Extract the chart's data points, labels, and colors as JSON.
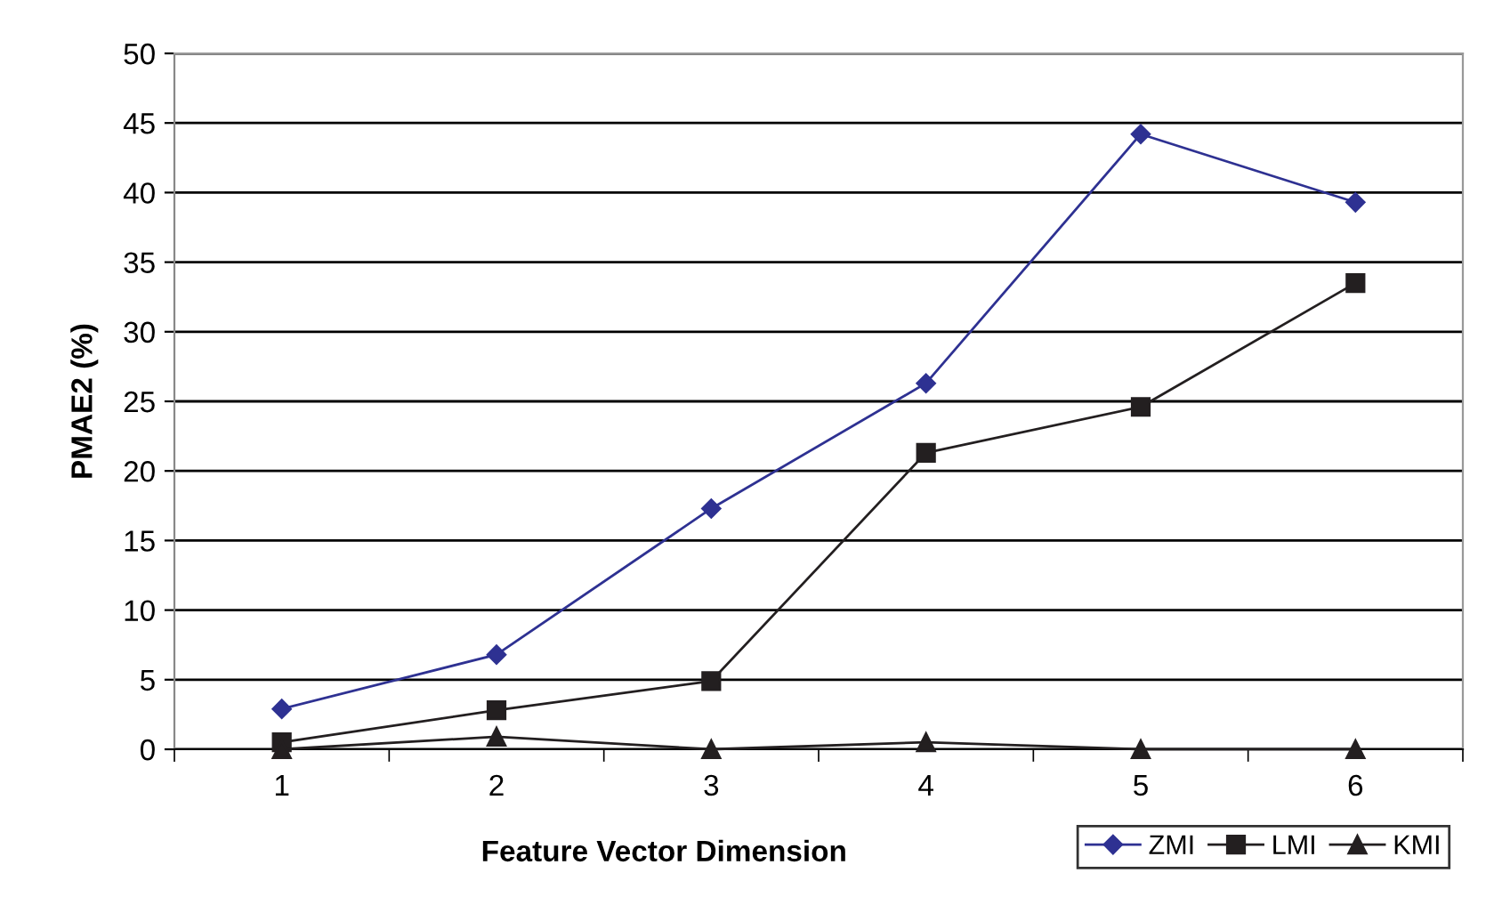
{
  "chart_data": {
    "type": "line",
    "xlabel": "Feature Vector Dimension",
    "ylabel": "PMAE2 (%)",
    "categories": [
      "1",
      "2",
      "3",
      "4",
      "5",
      "6"
    ],
    "series": [
      {
        "name": "ZMI",
        "color": "#2e3192",
        "marker": "diamond",
        "values": [
          2.9,
          6.8,
          17.3,
          26.3,
          44.2,
          39.3
        ]
      },
      {
        "name": "LMI",
        "color": "#231f20",
        "marker": "square",
        "values": [
          0.5,
          2.8,
          4.9,
          21.3,
          24.6,
          33.5
        ]
      },
      {
        "name": "KMI",
        "color": "#231f20",
        "marker": "triangle",
        "values": [
          0,
          0.9,
          0,
          0.5,
          0,
          0
        ]
      }
    ],
    "ylim": [
      0,
      50
    ],
    "yticks": [
      0,
      5,
      10,
      15,
      20,
      25,
      30,
      35,
      40,
      45,
      50
    ],
    "grid": "y",
    "legend": "bottom right",
    "line_style": "solid"
  }
}
